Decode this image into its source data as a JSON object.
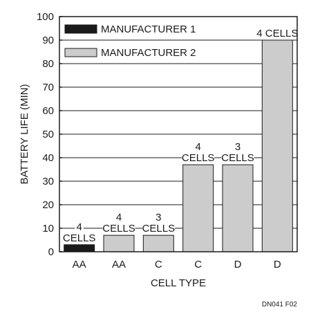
{
  "chart_data": {
    "type": "bar",
    "xlabel": "CELL TYPE",
    "ylabel": "BATTERY LIFE (MIN)",
    "ylim": [
      0,
      100
    ],
    "yticks": [
      0,
      10,
      20,
      30,
      40,
      50,
      60,
      70,
      80,
      90,
      100
    ],
    "grid": "horizontal",
    "legend_position": "top-left",
    "figure_id": "DN041 F02",
    "series": [
      {
        "name": "MANUFACTURER 1",
        "color": "#1a1a1a"
      },
      {
        "name": "MANUFACTURER 2",
        "color": "#cccccc"
      }
    ],
    "bars": [
      {
        "category": "AA",
        "series": "MANUFACTURER 1",
        "value": 3,
        "label": [
          "4",
          "CELLS"
        ]
      },
      {
        "category": "AA",
        "series": "MANUFACTURER 2",
        "value": 7,
        "label": [
          "4",
          "CELLS"
        ]
      },
      {
        "category": "C",
        "series": "MANUFACTURER 2",
        "value": 7,
        "label": [
          "3",
          "CELLS"
        ]
      },
      {
        "category": "C",
        "series": "MANUFACTURER 2",
        "value": 37,
        "label": [
          "4",
          "CELLS"
        ]
      },
      {
        "category": "D",
        "series": "MANUFACTURER 2",
        "value": 37,
        "label": [
          "3",
          "CELLS"
        ]
      },
      {
        "category": "D",
        "series": "MANUFACTURER 2",
        "value": 90,
        "label": [
          "4 CELLS"
        ]
      }
    ]
  }
}
